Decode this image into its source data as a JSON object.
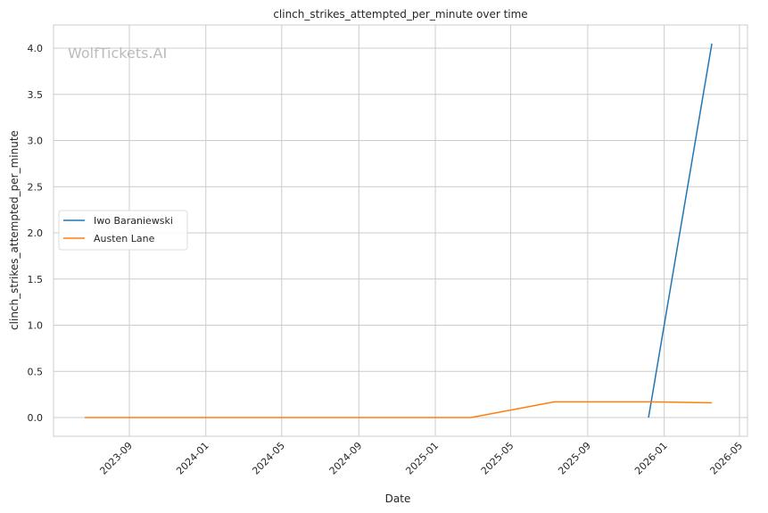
{
  "chart_data": {
    "type": "line",
    "title": "clinch_strikes_attempted_per_minute over time",
    "xlabel": "Date",
    "ylabel": "clinch_strikes_attempted_per_minute",
    "watermark": "WolfTickets.AI",
    "x_ticks": [
      "2023-09",
      "2024-01",
      "2024-05",
      "2024-09",
      "2025-01",
      "2025-05",
      "2025-09",
      "2026-01",
      "2026-05"
    ],
    "y_ticks": [
      "0.0",
      "0.5",
      "1.0",
      "1.5",
      "2.0",
      "2.5",
      "3.0",
      "3.5",
      "4.0"
    ],
    "ylim": [
      -0.2,
      4.25
    ],
    "xlim": [
      "2023-05-15",
      "2026-05-25"
    ],
    "grid": true,
    "legend_position": "center-left",
    "series": [
      {
        "name": "Iwo Baraniewski",
        "color": "#1f77b4",
        "x": [
          "2025-12-07",
          "2026-03-18"
        ],
        "y": [
          0.0,
          4.05
        ]
      },
      {
        "name": "Austen Lane",
        "color": "#ff7f0e",
        "x": [
          "2023-06-22",
          "2025-02-27",
          "2025-07-10",
          "2025-12-07",
          "2026-03-18"
        ],
        "y": [
          0.0,
          0.0,
          0.17,
          0.17,
          0.16
        ]
      }
    ]
  }
}
